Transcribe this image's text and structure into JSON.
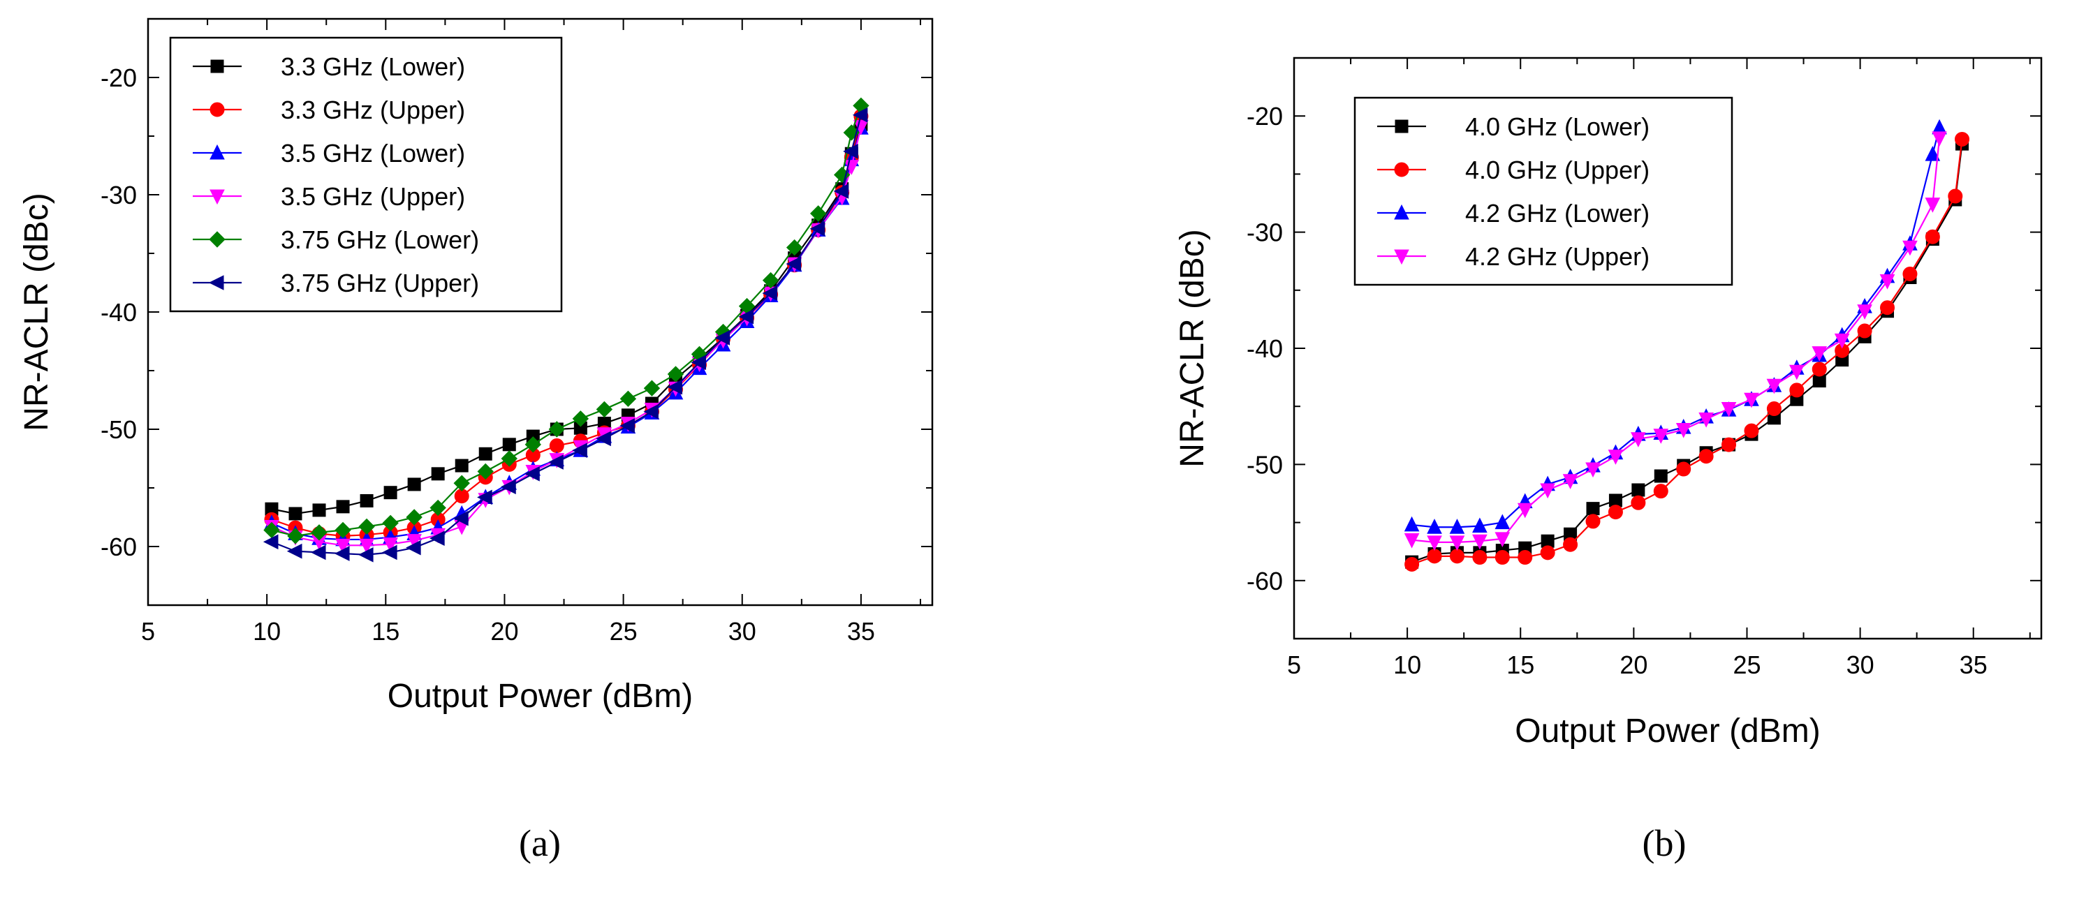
{
  "chart_data": [
    {
      "type": "line",
      "panel_label": "(a)",
      "xlabel": "Output Power (dBm)",
      "ylabel": "NR-ACLR (dBc)",
      "xlim": [
        5,
        38
      ],
      "ylim": [
        -65,
        -15
      ],
      "xticks": [
        5,
        10,
        15,
        20,
        25,
        30,
        35
      ],
      "yticks": [
        -60,
        -50,
        -40,
        -30,
        -20
      ],
      "legend_position": "top-left",
      "series": [
        {
          "name": "3.3 GHz (Lower)",
          "color": "#000000",
          "marker": "square",
          "x": [
            10.2,
            11.2,
            12.2,
            13.2,
            14.2,
            15.2,
            16.2,
            17.2,
            18.2,
            19.2,
            20.2,
            21.2,
            22.2,
            23.2,
            24.2,
            25.2,
            26.2,
            27.2,
            28.2,
            29.2,
            30.2,
            31.2,
            32.2,
            33.2,
            34.2,
            34.6,
            35.0
          ],
          "y": [
            -56.8,
            -57.2,
            -56.9,
            -56.6,
            -56.1,
            -55.4,
            -54.7,
            -53.8,
            -53.1,
            -52.1,
            -51.3,
            -50.6,
            -50.0,
            -49.9,
            -49.5,
            -48.8,
            -47.8,
            -45.7,
            -44.0,
            -42.2,
            -40.3,
            -38.2,
            -35.4,
            -32.6,
            -29.5,
            -26.5,
            -24.0
          ]
        },
        {
          "name": "3.3 GHz (Upper)",
          "color": "#ff0000",
          "marker": "circle",
          "x": [
            10.2,
            11.2,
            12.2,
            13.2,
            14.2,
            15.2,
            16.2,
            17.2,
            18.2,
            19.2,
            20.2,
            21.2,
            22.2,
            23.2,
            24.2,
            25.2,
            26.2,
            27.2,
            28.2,
            29.2,
            30.2,
            31.2,
            32.2,
            33.2,
            34.2,
            34.6,
            35.0
          ],
          "y": [
            -57.7,
            -58.4,
            -58.9,
            -59.1,
            -59.0,
            -58.8,
            -58.4,
            -57.7,
            -55.7,
            -54.1,
            -53.0,
            -52.2,
            -51.4,
            -51.0,
            -50.3,
            -49.7,
            -48.5,
            -46.6,
            -44.5,
            -42.3,
            -40.5,
            -38.5,
            -36.0,
            -33.0,
            -29.8,
            -26.8,
            -23.3
          ]
        },
        {
          "name": "3.5 GHz (Lower)",
          "color": "#0000ff",
          "marker": "triangle-up",
          "x": [
            10.2,
            11.2,
            12.2,
            13.2,
            14.2,
            15.2,
            16.2,
            17.2,
            18.2,
            19.2,
            20.2,
            21.2,
            22.2,
            23.2,
            24.2,
            25.2,
            26.2,
            27.2,
            28.2,
            29.2,
            30.2,
            31.2,
            32.2,
            33.2,
            34.2,
            34.6,
            35.0
          ],
          "y": [
            -58.0,
            -58.9,
            -59.3,
            -59.4,
            -59.4,
            -59.2,
            -58.9,
            -58.4,
            -57.2,
            -55.8,
            -54.6,
            -53.4,
            -52.6,
            -51.8,
            -50.6,
            -49.8,
            -48.6,
            -46.9,
            -44.8,
            -42.8,
            -40.8,
            -38.6,
            -36.0,
            -33.0,
            -30.3,
            -27.0,
            -24.3
          ]
        },
        {
          "name": "3.5 GHz (Upper)",
          "color": "#ff00ff",
          "marker": "triangle-down",
          "x": [
            10.2,
            11.2,
            12.2,
            13.2,
            14.2,
            15.2,
            16.2,
            17.2,
            18.2,
            19.2,
            20.2,
            21.2,
            22.2,
            23.2,
            24.2,
            25.2,
            26.2,
            27.2,
            28.2,
            29.2,
            30.2,
            31.2,
            32.2,
            33.2,
            34.2,
            34.6,
            35.0
          ],
          "y": [
            -58.3,
            -59.2,
            -59.6,
            -59.9,
            -59.9,
            -59.8,
            -59.5,
            -59.0,
            -58.3,
            -56.0,
            -54.9,
            -53.6,
            -52.6,
            -51.5,
            -50.4,
            -49.5,
            -48.3,
            -46.5,
            -44.4,
            -42.4,
            -40.5,
            -38.4,
            -35.9,
            -33.0,
            -30.2,
            -27.6,
            -24.2
          ]
        },
        {
          "name": "3.75 GHz (Lower)",
          "color": "#008000",
          "marker": "diamond",
          "x": [
            10.2,
            11.2,
            12.2,
            13.2,
            14.2,
            15.2,
            16.2,
            17.2,
            18.2,
            19.2,
            20.2,
            21.2,
            22.2,
            23.2,
            24.2,
            25.2,
            26.2,
            27.2,
            28.2,
            29.2,
            30.2,
            31.2,
            32.2,
            33.2,
            34.2,
            34.6,
            35.0
          ],
          "y": [
            -58.6,
            -59.1,
            -58.8,
            -58.6,
            -58.3,
            -58.0,
            -57.5,
            -56.7,
            -54.6,
            -53.6,
            -52.5,
            -51.3,
            -50.0,
            -49.1,
            -48.3,
            -47.4,
            -46.5,
            -45.3,
            -43.6,
            -41.7,
            -39.5,
            -37.3,
            -34.5,
            -31.6,
            -28.3,
            -24.7,
            -22.4
          ]
        },
        {
          "name": "3.75 GHz (Upper)",
          "color": "#00008b",
          "marker": "triangle-left",
          "x": [
            10.2,
            11.2,
            12.2,
            13.2,
            14.2,
            15.2,
            16.2,
            17.2,
            18.2,
            19.2,
            20.2,
            21.2,
            22.2,
            23.2,
            24.2,
            25.2,
            26.2,
            27.2,
            28.2,
            29.2,
            30.2,
            31.2,
            32.2,
            33.2,
            34.2,
            34.6,
            35.0
          ],
          "y": [
            -59.6,
            -60.4,
            -60.5,
            -60.6,
            -60.7,
            -60.5,
            -60.1,
            -59.3,
            -57.6,
            -55.8,
            -54.9,
            -53.8,
            -52.8,
            -51.8,
            -50.8,
            -49.7,
            -48.5,
            -46.4,
            -44.3,
            -42.2,
            -40.4,
            -38.4,
            -35.9,
            -32.9,
            -29.7,
            -26.3,
            -23.2
          ]
        }
      ]
    },
    {
      "type": "line",
      "panel_label": "(b)",
      "xlabel": "Output Power (dBm)",
      "ylabel": "NR-ACLR (dBc)",
      "xlim": [
        5,
        38
      ],
      "ylim": [
        -65,
        -15
      ],
      "xticks": [
        5,
        10,
        15,
        20,
        25,
        30,
        35
      ],
      "yticks": [
        -60,
        -50,
        -40,
        -30,
        -20
      ],
      "legend_position": "top-left",
      "series": [
        {
          "name": "4.0 GHz (Lower)",
          "color": "#000000",
          "marker": "square",
          "x": [
            10.2,
            11.2,
            12.2,
            13.2,
            14.2,
            15.2,
            16.2,
            17.2,
            18.2,
            19.2,
            20.2,
            21.2,
            22.2,
            23.2,
            24.2,
            25.2,
            26.2,
            27.2,
            28.2,
            29.2,
            30.2,
            31.2,
            32.2,
            33.2,
            34.2,
            34.5
          ],
          "y": [
            -58.4,
            -57.7,
            -57.6,
            -57.6,
            -57.4,
            -57.2,
            -56.6,
            -56.0,
            -53.8,
            -53.1,
            -52.2,
            -51.0,
            -50.1,
            -49.0,
            -48.3,
            -47.4,
            -46.0,
            -44.4,
            -42.8,
            -41.0,
            -39.0,
            -36.8,
            -33.9,
            -30.6,
            -27.2,
            -22.4
          ]
        },
        {
          "name": "4.0 GHz (Upper)",
          "color": "#ff0000",
          "marker": "circle",
          "x": [
            10.2,
            11.2,
            12.2,
            13.2,
            14.2,
            15.2,
            16.2,
            17.2,
            18.2,
            19.2,
            20.2,
            21.2,
            22.2,
            23.2,
            24.2,
            25.2,
            26.2,
            27.2,
            28.2,
            29.2,
            30.2,
            31.2,
            32.2,
            33.2,
            34.2,
            34.5
          ],
          "y": [
            -58.6,
            -57.9,
            -57.9,
            -58.0,
            -58.0,
            -58.0,
            -57.6,
            -56.9,
            -54.9,
            -54.1,
            -53.3,
            -52.3,
            -50.4,
            -49.3,
            -48.3,
            -47.1,
            -45.2,
            -43.6,
            -41.8,
            -40.2,
            -38.5,
            -36.5,
            -33.6,
            -30.4,
            -26.9,
            -22.0
          ]
        },
        {
          "name": "4.2 GHz (Lower)",
          "color": "#0000ff",
          "marker": "triangle-up",
          "x": [
            10.2,
            11.2,
            12.2,
            13.2,
            14.2,
            15.2,
            16.2,
            17.2,
            18.2,
            19.2,
            20.2,
            21.2,
            22.2,
            23.2,
            24.2,
            25.2,
            26.2,
            27.2,
            28.2,
            29.2,
            30.2,
            31.2,
            32.2,
            33.2,
            33.5
          ],
          "y": [
            -55.2,
            -55.4,
            -55.4,
            -55.3,
            -55.0,
            -53.2,
            -51.7,
            -51.1,
            -50.1,
            -49.0,
            -47.4,
            -47.3,
            -46.8,
            -45.9,
            -45.3,
            -44.4,
            -43.2,
            -41.7,
            -40.6,
            -38.9,
            -36.4,
            -33.8,
            -31.0,
            -23.3,
            -21.0
          ]
        },
        {
          "name": "4.2 GHz (Upper)",
          "color": "#ff00ff",
          "marker": "triangle-down",
          "x": [
            10.2,
            11.2,
            12.2,
            13.2,
            14.2,
            15.2,
            16.2,
            17.2,
            18.2,
            19.2,
            20.2,
            21.2,
            22.2,
            23.2,
            24.2,
            25.2,
            26.2,
            27.2,
            28.2,
            29.2,
            30.2,
            31.2,
            32.2,
            33.2,
            33.5
          ],
          "y": [
            -56.5,
            -56.7,
            -56.7,
            -56.6,
            -56.4,
            -53.9,
            -52.2,
            -51.4,
            -50.4,
            -49.3,
            -47.8,
            -47.5,
            -47.0,
            -46.1,
            -45.2,
            -44.4,
            -43.2,
            -42.0,
            -40.4,
            -39.3,
            -36.8,
            -34.2,
            -31.3,
            -27.6,
            -21.9
          ]
        }
      ]
    }
  ]
}
